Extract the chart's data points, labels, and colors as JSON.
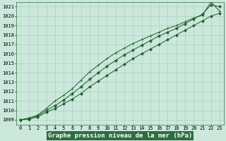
{
  "title": "Graphe pression niveau de la mer (hPa)",
  "xlim": [
    -0.5,
    23.5
  ],
  "ylim": [
    1008.5,
    1021.5
  ],
  "yticks": [
    1009,
    1010,
    1011,
    1012,
    1013,
    1014,
    1015,
    1016,
    1017,
    1018,
    1019,
    1020,
    1021
  ],
  "xticks": [
    0,
    1,
    2,
    3,
    4,
    5,
    6,
    7,
    8,
    9,
    10,
    11,
    12,
    13,
    14,
    15,
    16,
    17,
    18,
    19,
    20,
    21,
    22,
    23
  ],
  "bg_color": "#cce8dc",
  "grid_color": "#aad0c0",
  "line_color": "#1a5c2a",
  "marker_color": "#1a5c2a",
  "series": [
    {
      "x": [
        0,
        1,
        2,
        3,
        4,
        5,
        6,
        7,
        8,
        9,
        10,
        11,
        12,
        13,
        14,
        15,
        16,
        17,
        18,
        19,
        20,
        21,
        22,
        23
      ],
      "y": [
        1009.0,
        1009.1,
        1009.3,
        1009.8,
        1010.2,
        1010.7,
        1011.2,
        1011.8,
        1012.5,
        1013.1,
        1013.7,
        1014.3,
        1014.9,
        1015.5,
        1016.0,
        1016.5,
        1017.0,
        1017.5,
        1018.0,
        1018.5,
        1019.0,
        1019.5,
        1020.0,
        1020.3
      ]
    },
    {
      "x": [
        0,
        1,
        2,
        3,
        4,
        5,
        6,
        7,
        8,
        9,
        10,
        11,
        12,
        13,
        14,
        15,
        16,
        17,
        18,
        19,
        20,
        21,
        22,
        23
      ],
      "y": [
        1009.0,
        1009.1,
        1009.4,
        1010.0,
        1010.5,
        1011.1,
        1011.8,
        1012.5,
        1013.3,
        1014.0,
        1014.7,
        1015.3,
        1015.9,
        1016.4,
        1016.9,
        1017.4,
        1017.9,
        1018.3,
        1018.7,
        1019.2,
        1019.7,
        1020.2,
        1021.2,
        1021.0
      ]
    },
    {
      "x": [
        0,
        1,
        2,
        3,
        4,
        5,
        6,
        7,
        8,
        9,
        10,
        11,
        12,
        13,
        14,
        15,
        16,
        17,
        18,
        19,
        20,
        21,
        22,
        23
      ],
      "y": [
        1009.0,
        1009.2,
        1009.5,
        1010.2,
        1011.0,
        1011.6,
        1012.3,
        1013.2,
        1014.1,
        1014.8,
        1015.5,
        1016.1,
        1016.6,
        1017.1,
        1017.5,
        1017.9,
        1018.3,
        1018.7,
        1019.0,
        1019.4,
        1019.8,
        1020.1,
        1021.5,
        1020.5
      ]
    }
  ],
  "title_fontsize": 6.5,
  "tick_fontsize": 5.0,
  "title_bg": "#2d6e3e",
  "title_color": "#ffffff",
  "figsize": [
    3.2,
    2.0
  ],
  "dpi": 100
}
